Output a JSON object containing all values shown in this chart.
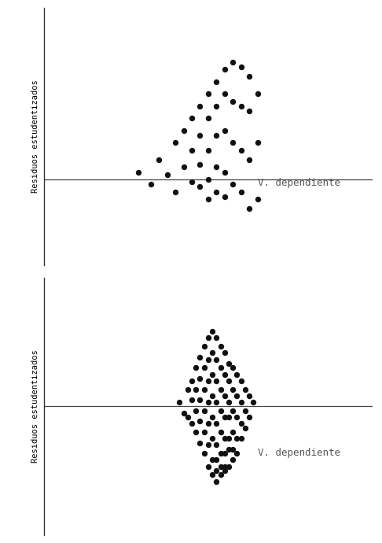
{
  "panel1": {
    "ylabel": "Residuos estudentizados",
    "xlabel_text": "V. dependiente",
    "dots_x": [
      1.8,
      2.1,
      2.3,
      2.5,
      2.7,
      2.7,
      2.9,
      2.9,
      3.1,
      3.1,
      3.1,
      3.3,
      3.3,
      3.3,
      3.3,
      3.5,
      3.5,
      3.5,
      3.5,
      3.5,
      3.7,
      3.7,
      3.7,
      3.7,
      3.7,
      3.9,
      3.9,
      3.9,
      3.9,
      3.9,
      4.1,
      4.1,
      4.1,
      4.1,
      4.3,
      4.3,
      4.3,
      4.3,
      4.5,
      4.5,
      4.5,
      4.5,
      4.7,
      4.7,
      4.7
    ],
    "dots_y": [
      0.3,
      -0.2,
      0.8,
      0.2,
      1.5,
      -0.5,
      2.0,
      0.5,
      2.5,
      1.2,
      -0.1,
      3.0,
      1.8,
      0.6,
      -0.3,
      3.5,
      2.5,
      1.2,
      0.0,
      -0.8,
      4.0,
      3.0,
      1.8,
      0.5,
      -0.5,
      4.5,
      3.5,
      2.0,
      0.3,
      -0.7,
      4.8,
      3.2,
      1.5,
      -0.2,
      4.6,
      3.0,
      1.2,
      -0.5,
      4.2,
      2.8,
      0.8,
      -1.2,
      3.5,
      1.5,
      -0.8
    ]
  },
  "panel2": {
    "ylabel": "Residuos estudentizados",
    "xlabel_text": "V. dependiente",
    "dots_x": [
      2.8,
      2.9,
      3.0,
      3.0,
      3.1,
      3.1,
      3.1,
      3.2,
      3.2,
      3.2,
      3.2,
      3.3,
      3.3,
      3.3,
      3.3,
      3.3,
      3.4,
      3.4,
      3.4,
      3.4,
      3.4,
      3.4,
      3.5,
      3.5,
      3.5,
      3.5,
      3.5,
      3.5,
      3.5,
      3.6,
      3.6,
      3.6,
      3.6,
      3.6,
      3.6,
      3.6,
      3.6,
      3.7,
      3.7,
      3.7,
      3.7,
      3.7,
      3.7,
      3.7,
      3.7,
      3.7,
      3.8,
      3.8,
      3.8,
      3.8,
      3.8,
      3.8,
      3.8,
      3.8,
      3.9,
      3.9,
      3.9,
      3.9,
      3.9,
      3.9,
      3.9,
      3.9,
      4.0,
      4.0,
      4.0,
      4.0,
      4.0,
      4.0,
      4.0,
      4.1,
      4.1,
      4.1,
      4.1,
      4.1,
      4.1,
      4.2,
      4.2,
      4.2,
      4.2,
      4.2,
      4.3,
      4.3,
      4.3,
      4.3,
      4.4,
      4.4,
      4.4,
      4.5,
      4.5,
      4.6
    ],
    "dots_y": [
      0.2,
      -0.3,
      0.8,
      -0.5,
      1.2,
      0.3,
      -0.8,
      1.8,
      0.8,
      -0.2,
      -1.2,
      2.3,
      1.3,
      0.3,
      -0.7,
      -1.7,
      2.8,
      1.8,
      0.8,
      -0.2,
      -1.2,
      -2.2,
      3.2,
      2.2,
      1.2,
      0.2,
      -0.8,
      -1.8,
      -2.8,
      3.5,
      2.5,
      1.5,
      0.5,
      -0.5,
      -1.5,
      -2.5,
      -3.2,
      3.2,
      2.2,
      1.2,
      0.2,
      -0.8,
      -1.8,
      -2.5,
      -3.0,
      -3.5,
      2.8,
      1.8,
      0.8,
      -0.2,
      -1.2,
      -2.2,
      -2.8,
      -3.2,
      2.5,
      1.5,
      0.5,
      -0.5,
      -1.5,
      -2.2,
      -2.8,
      -3.0,
      2.0,
      1.2,
      0.2,
      -0.5,
      -1.5,
      -2.0,
      -2.8,
      1.8,
      0.8,
      -0.2,
      -1.2,
      -2.0,
      -2.5,
      1.5,
      0.5,
      -0.5,
      -1.5,
      -2.2,
      1.2,
      0.2,
      -0.8,
      -1.5,
      0.8,
      -0.2,
      -1.0,
      0.5,
      -0.5,
      0.2
    ]
  },
  "dot_color": "#111111",
  "dot_size": 28,
  "line_color": "#444444",
  "axis_color": "#333333",
  "bg_color": "#ffffff",
  "font_family": "monospace",
  "ylabel_fontsize": 7.5,
  "xlabel_fontsize": 9,
  "xlim1": [
    -0.5,
    7.5
  ],
  "ylim1": [
    -3.5,
    7.0
  ],
  "xlim2": [
    -0.5,
    7.5
  ],
  "ylim2": [
    -6.0,
    6.0
  ]
}
